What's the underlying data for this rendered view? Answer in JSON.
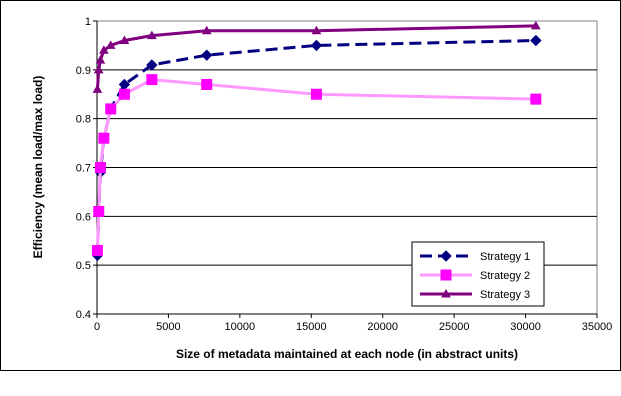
{
  "chart_data": {
    "type": "line",
    "title": "",
    "xlabel": "Size of metadata maintained at each node (in abstract units)",
    "ylabel": "Efficiency (mean load/max load)",
    "xlim": [
      0,
      35000
    ],
    "ylim": [
      0.4,
      1.0
    ],
    "xticks": [
      0,
      5000,
      10000,
      15000,
      20000,
      25000,
      30000,
      35000
    ],
    "yticks": [
      0.4,
      0.5,
      0.6,
      0.7,
      0.8,
      0.9,
      1.0
    ],
    "ytick_labels": [
      "0.4",
      "0.5",
      "0.6",
      "0.7",
      "0.8",
      "0.9",
      "1"
    ],
    "grid": "horizontal",
    "legend_position": "bottom-right",
    "series": [
      {
        "name": "Strategy 1",
        "color": "#000080",
        "line_style": "dashed",
        "marker": "diamond",
        "x": [
          30,
          120,
          240,
          480,
          960,
          1920,
          3840,
          7680,
          15360,
          30720
        ],
        "y": [
          0.52,
          0.61,
          0.69,
          0.76,
          0.82,
          0.87,
          0.91,
          0.93,
          0.95,
          0.96
        ]
      },
      {
        "name": "Strategy 2",
        "color": "#ff00ff",
        "line_color": "#ff99ff",
        "line_style": "solid",
        "marker": "square",
        "x": [
          30,
          120,
          240,
          480,
          960,
          1920,
          3840,
          7680,
          15360,
          30720
        ],
        "y": [
          0.53,
          0.61,
          0.7,
          0.76,
          0.82,
          0.85,
          0.88,
          0.87,
          0.85,
          0.84
        ]
      },
      {
        "name": "Strategy 3",
        "color": "#800080",
        "line_style": "solid",
        "marker": "triangle",
        "x": [
          30,
          120,
          240,
          480,
          960,
          1920,
          3840,
          7680,
          15360,
          30720
        ],
        "y": [
          0.86,
          0.9,
          0.92,
          0.94,
          0.95,
          0.96,
          0.97,
          0.98,
          0.98,
          0.99
        ]
      }
    ]
  }
}
